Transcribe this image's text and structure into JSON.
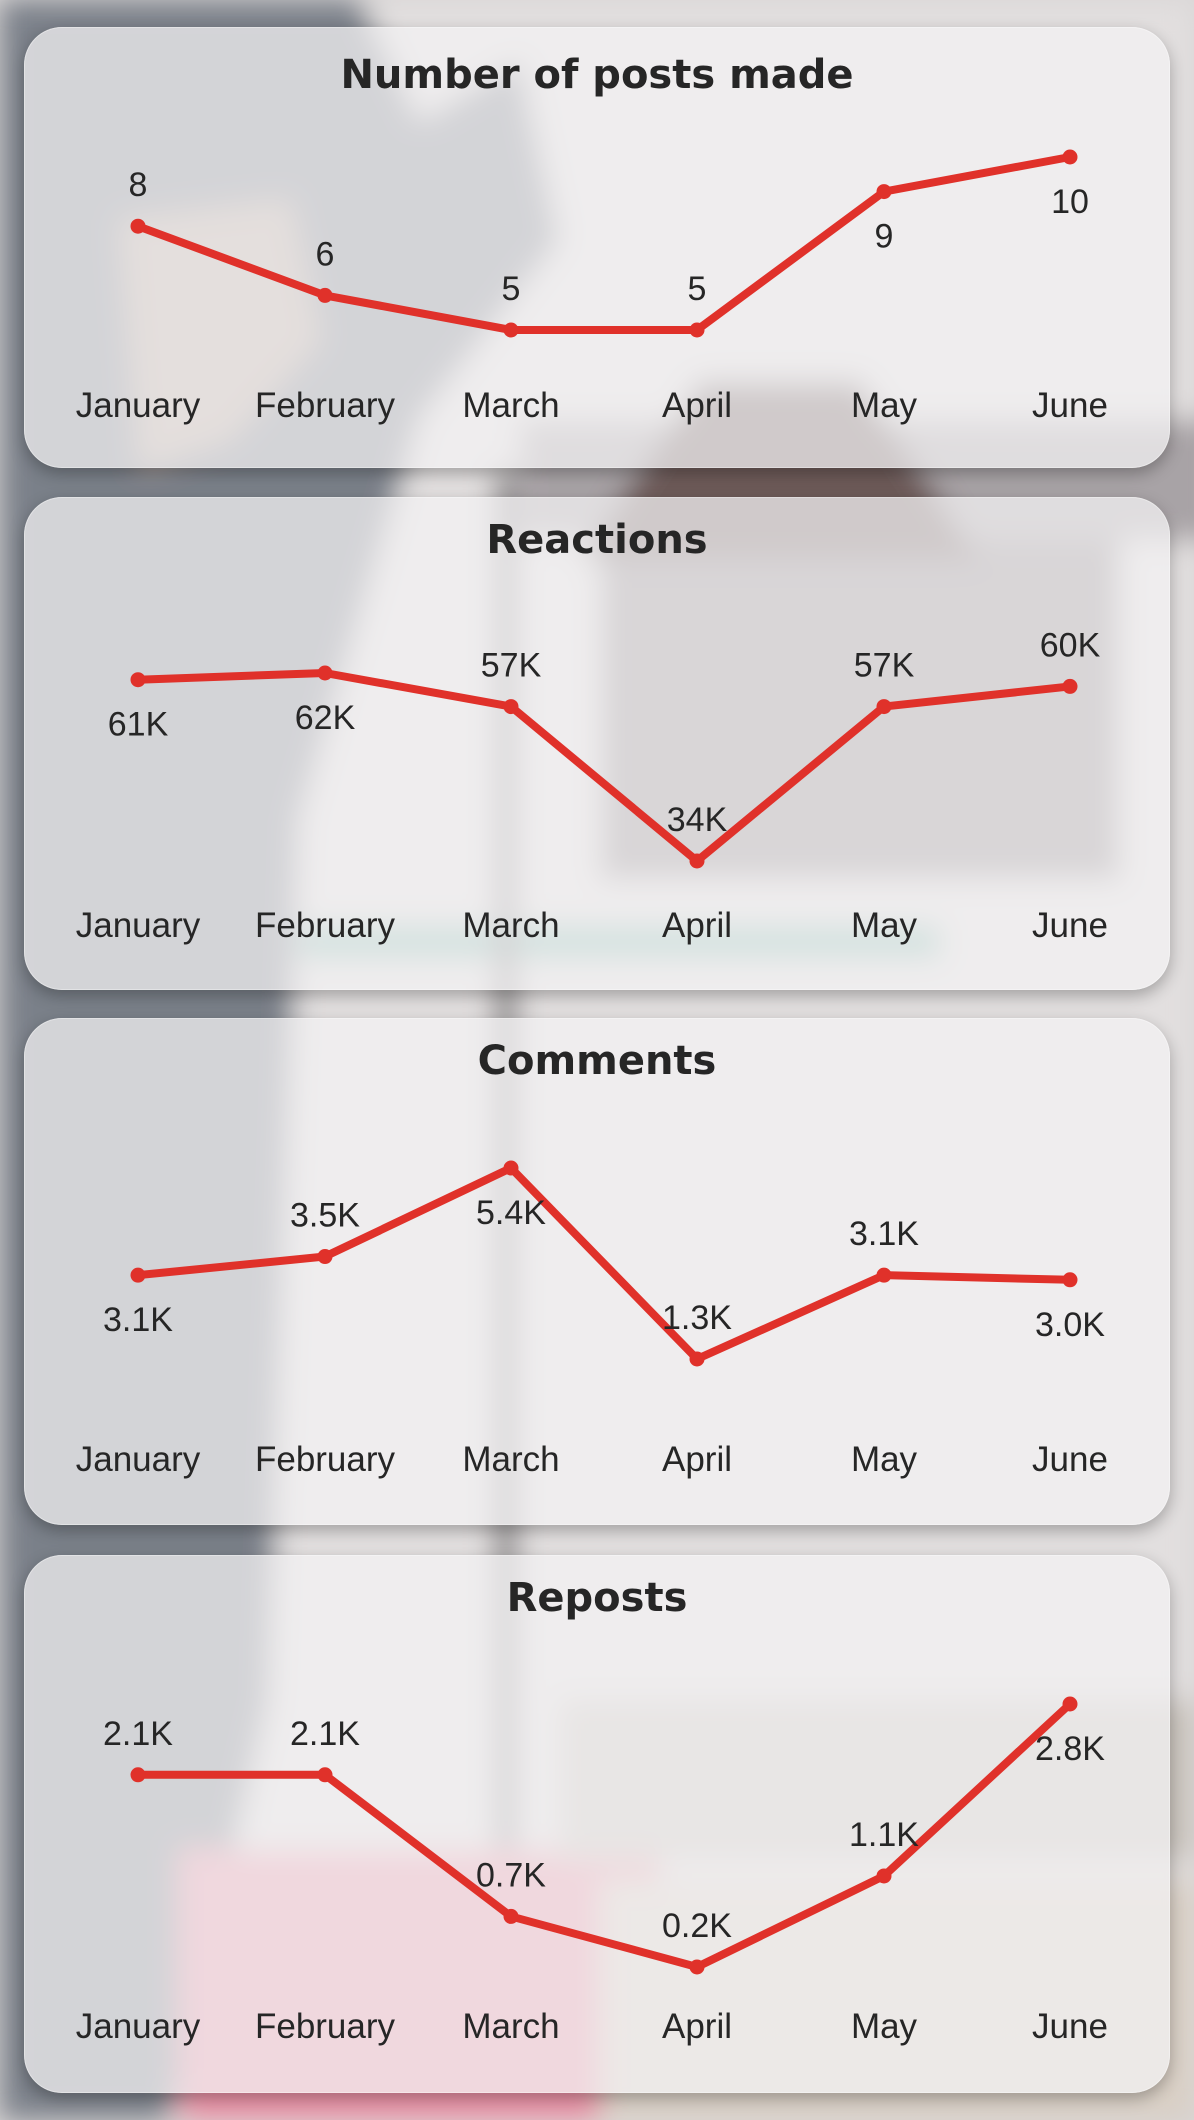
{
  "colors": {
    "line": "#e0312a",
    "text": "#262626"
  },
  "charts": [
    {
      "chart_data": {
        "type": "line",
        "title": "Number of posts made",
        "categories": [
          "January",
          "February",
          "March",
          "April",
          "May",
          "June"
        ],
        "values": [
          8,
          6,
          5,
          5,
          9,
          10
        ],
        "labels": [
          "8",
          "6",
          "5",
          "5",
          "9",
          "10"
        ],
        "label_side": [
          "above",
          "above",
          "above",
          "above",
          "below",
          "below"
        ],
        "ylim": [
          5,
          10
        ],
        "grid": false,
        "legend": "none"
      }
    },
    {
      "chart_data": {
        "type": "line",
        "title": "Reactions",
        "categories": [
          "January",
          "February",
          "March",
          "April",
          "May",
          "June"
        ],
        "values": [
          61000,
          62000,
          57000,
          34000,
          57000,
          60000
        ],
        "labels": [
          "61K",
          "62K",
          "57K",
          "34K",
          "57K",
          "60K"
        ],
        "label_side": [
          "below",
          "below",
          "above",
          "above",
          "above",
          "above"
        ],
        "ylim": [
          34000,
          62000
        ],
        "grid": false,
        "legend": "none"
      }
    },
    {
      "chart_data": {
        "type": "line",
        "title": "Comments",
        "categories": [
          "January",
          "February",
          "March",
          "April",
          "May",
          "June"
        ],
        "values": [
          3100,
          3500,
          5400,
          1300,
          3100,
          3000
        ],
        "labels": [
          "3.1K",
          "3.5K",
          "5.4K",
          "1.3K",
          "3.1K",
          "3.0K"
        ],
        "label_side": [
          "below",
          "above",
          "below",
          "above",
          "above",
          "below"
        ],
        "ylim": [
          1300,
          5400
        ],
        "grid": false,
        "legend": "none"
      }
    },
    {
      "chart_data": {
        "type": "line",
        "title": "Reposts",
        "categories": [
          "January",
          "February",
          "March",
          "April",
          "May",
          "June"
        ],
        "values": [
          2100,
          2100,
          700,
          200,
          1100,
          2800
        ],
        "labels": [
          "2.1K",
          "2.1K",
          "0.7K",
          "0.2K",
          "1.1K",
          "2.8K"
        ],
        "label_side": [
          "above",
          "above",
          "above",
          "above",
          "above",
          "below"
        ],
        "ylim": [
          200,
          2800
        ],
        "grid": false,
        "legend": "none"
      }
    }
  ]
}
